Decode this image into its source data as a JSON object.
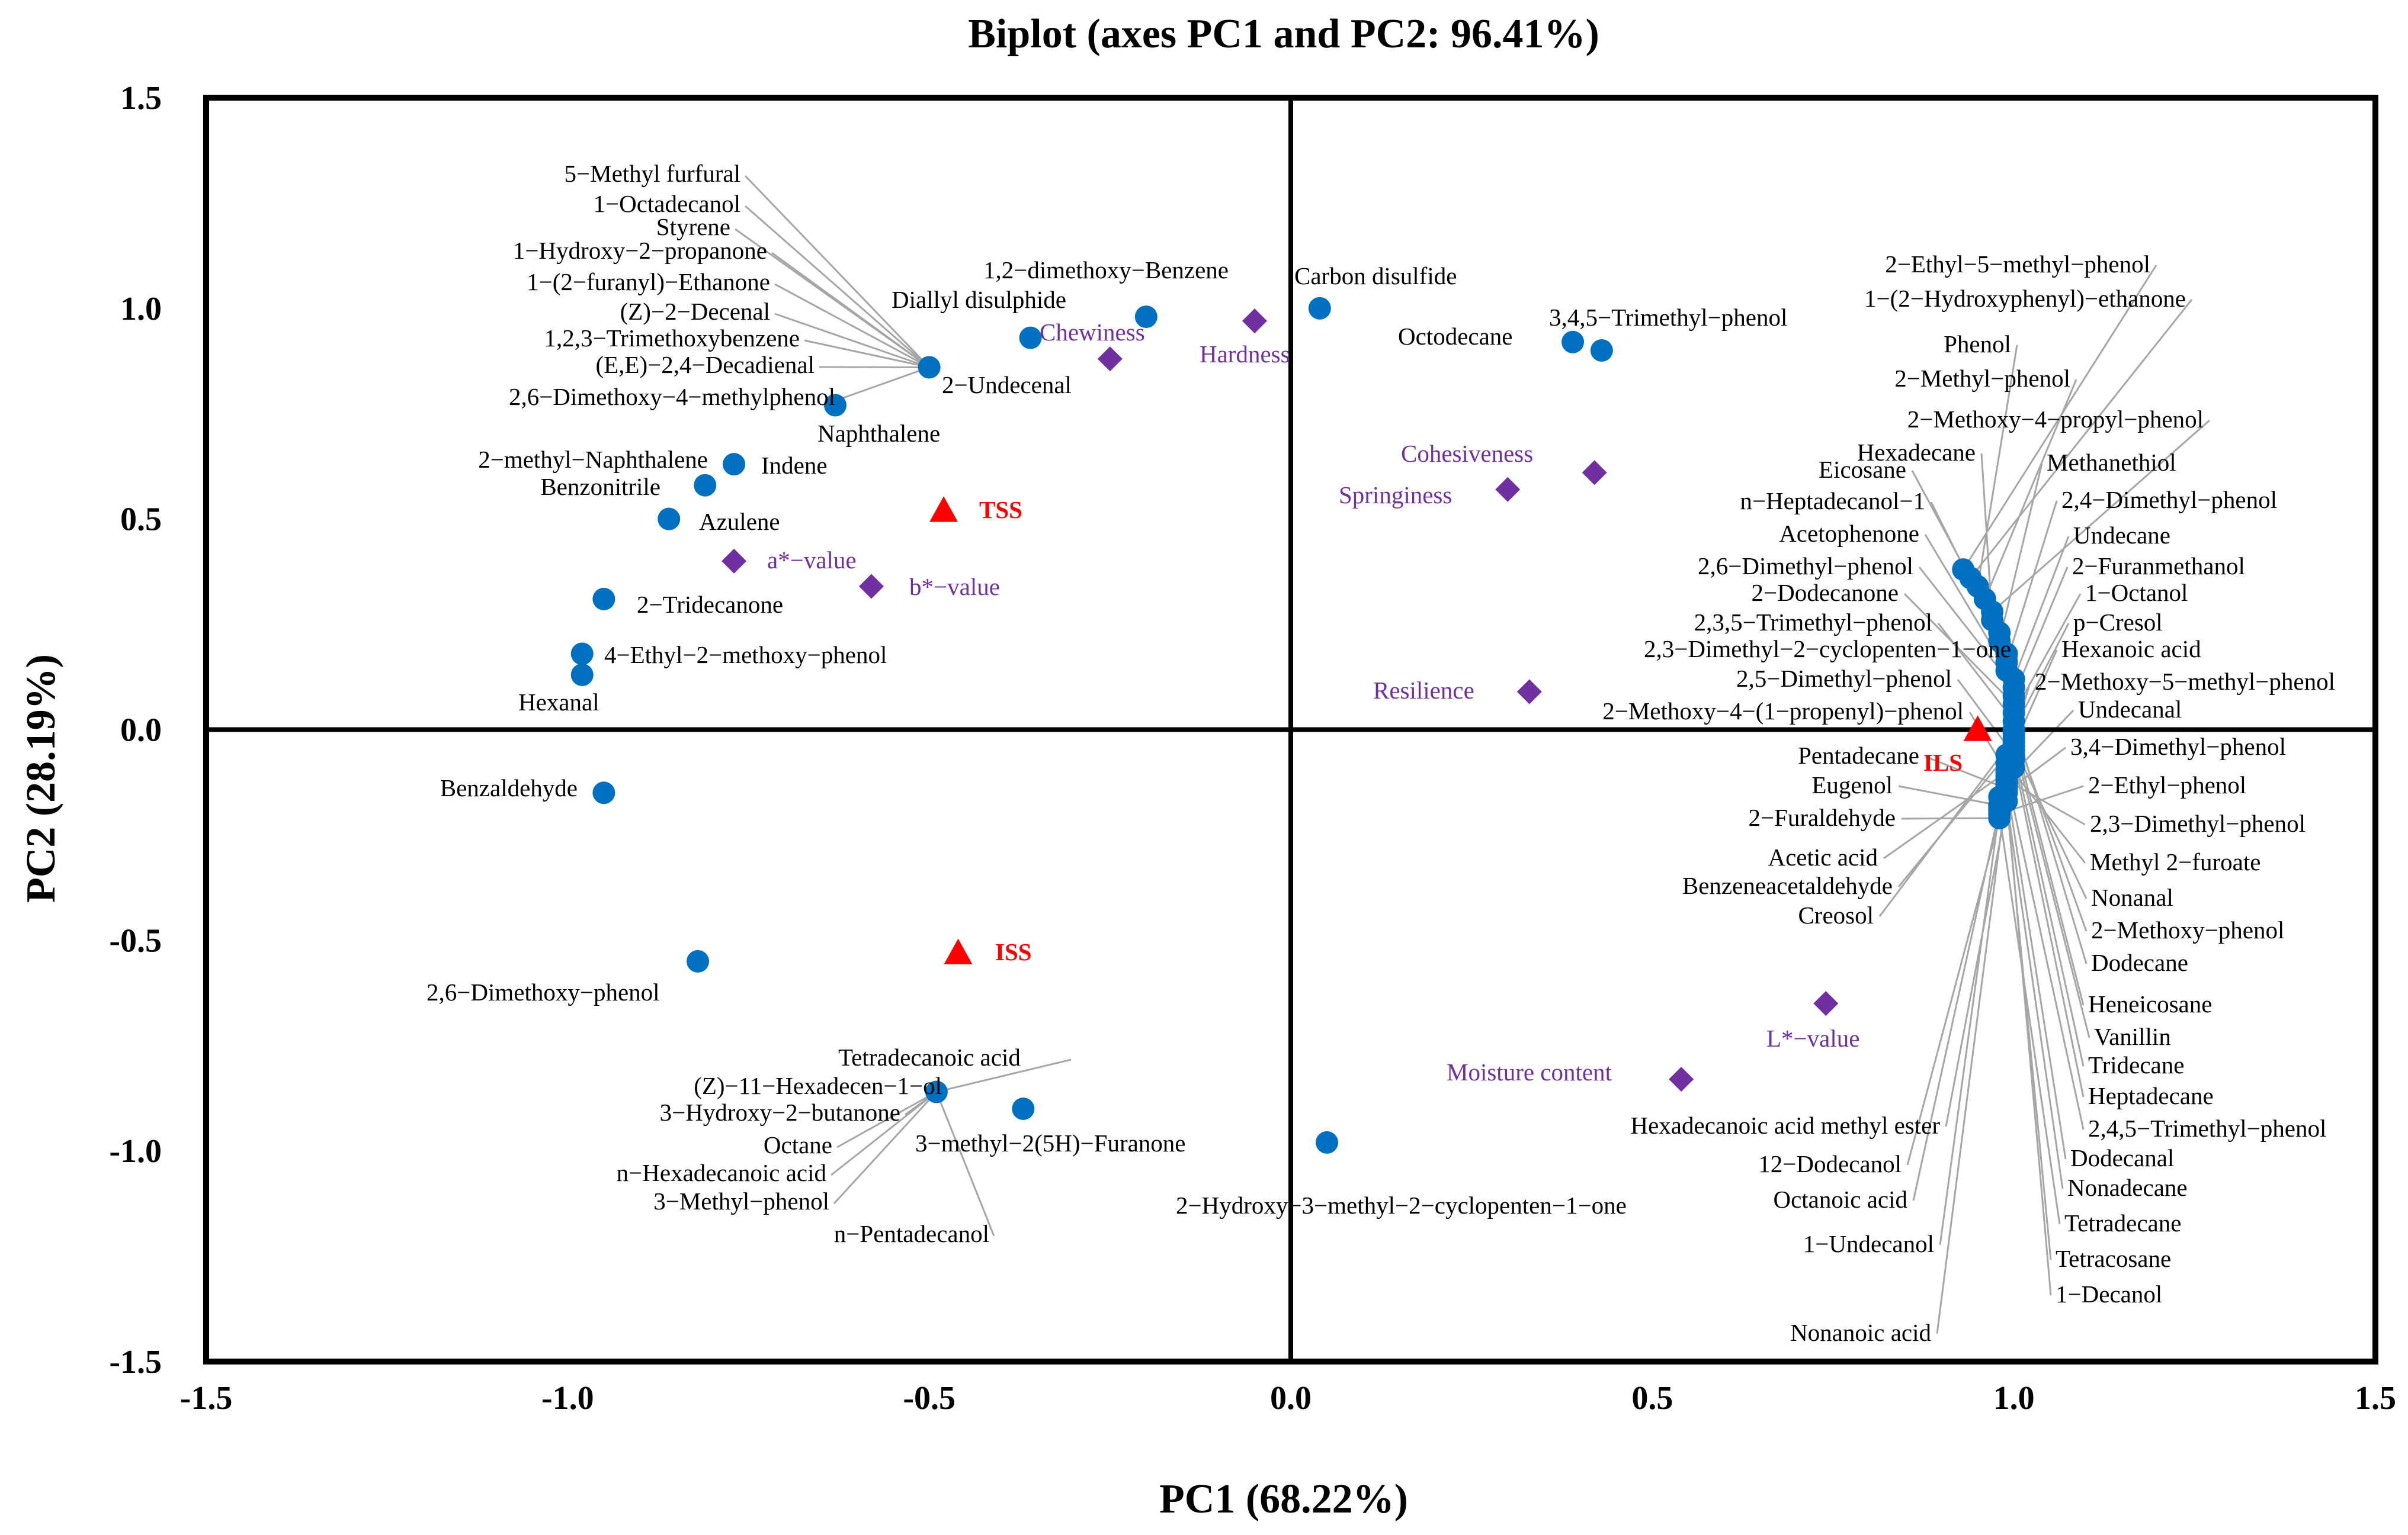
{
  "chart_data": {
    "type": "scatter",
    "title": "Biplot (axes PC1 and PC2: 96.41%)",
    "xlabel": "PC1 (68.22%)",
    "ylabel": "PC2 (28.19%)",
    "xlim": [
      -1.5,
      1.5
    ],
    "ylim": [
      -1.5,
      1.5
    ],
    "x_ticks": [
      "-1.5",
      "-1.0",
      "-0.5",
      "0.0",
      "0.5",
      "1.0",
      "1.5"
    ],
    "y_ticks": [
      "1.5",
      "1.0",
      "0.5",
      "0.0",
      "-0.5",
      "-1.0",
      "-1.5"
    ],
    "colors": {
      "volatile": "#0070c0",
      "texture": "#7030a0",
      "sample": "#ff0000",
      "leader": "#a6a6a6"
    },
    "series": [
      {
        "name": "Volatile compounds",
        "marker": "circle",
        "points": [
          {
            "x": -0.5,
            "y": 0.86,
            "label": "5−Methyl furfural"
          },
          {
            "x": -0.5,
            "y": 0.86,
            "label": "1−Octadecanol"
          },
          {
            "x": -0.5,
            "y": 0.86,
            "label": "Styrene"
          },
          {
            "x": -0.5,
            "y": 0.86,
            "label": "1−Hydroxy−2−propanone"
          },
          {
            "x": -0.5,
            "y": 0.86,
            "label": "1−(2−furanyl)−Ethanone"
          },
          {
            "x": -0.5,
            "y": 0.86,
            "label": "(Z)−2−Decenal"
          },
          {
            "x": -0.5,
            "y": 0.86,
            "label": "1,2,3−Trimethoxybenzene"
          },
          {
            "x": -0.5,
            "y": 0.86,
            "label": "(E,E)−2,4−Decadienal"
          },
          {
            "x": -0.5,
            "y": 0.86,
            "label": "2,6−Dimethoxy−4−methylphenol"
          },
          {
            "x": -0.5,
            "y": 0.86,
            "label": "2−Undecenal"
          },
          {
            "x": -0.36,
            "y": 0.93,
            "label": "Diallyl disulphide"
          },
          {
            "x": -0.2,
            "y": 0.98,
            "label": "1,2−dimethoxy−Benzene"
          },
          {
            "x": 0.04,
            "y": 1.0,
            "label": "Carbon disulfide"
          },
          {
            "x": 0.39,
            "y": 0.92,
            "label": "Octodecane"
          },
          {
            "x": 0.43,
            "y": 0.9,
            "label": "3,4,5−Trimethyl−phenol"
          },
          {
            "x": -0.63,
            "y": 0.77,
            "label": "Naphthalene"
          },
          {
            "x": -0.77,
            "y": 0.63,
            "label": "Indene"
          },
          {
            "x": -0.81,
            "y": 0.58,
            "label": "2−methyl−Naphthalene"
          },
          {
            "x": -0.81,
            "y": 0.58,
            "label": "Benzonitrile"
          },
          {
            "x": -0.86,
            "y": 0.5,
            "label": "Azulene"
          },
          {
            "x": -0.95,
            "y": 0.31,
            "label": "2−Tridecanone"
          },
          {
            "x": -0.98,
            "y": 0.18,
            "label": "4−Ethyl−2−methoxy−phenol"
          },
          {
            "x": -0.98,
            "y": 0.13,
            "label": "Hexanal"
          },
          {
            "x": -0.95,
            "y": -0.15,
            "label": "Benzaldehyde"
          },
          {
            "x": -0.82,
            "y": -0.55,
            "label": "2,6−Dimethoxy−phenol"
          },
          {
            "x": -0.49,
            "y": -0.86,
            "label": "Tetradecanoic acid"
          },
          {
            "x": -0.49,
            "y": -0.86,
            "label": "(Z)−11−Hexadecen−1−ol"
          },
          {
            "x": -0.49,
            "y": -0.86,
            "label": "3−Hydroxy−2−butanone"
          },
          {
            "x": -0.49,
            "y": -0.86,
            "label": "Octane"
          },
          {
            "x": -0.49,
            "y": -0.86,
            "label": "n−Hexadecanoic acid"
          },
          {
            "x": -0.49,
            "y": -0.86,
            "label": "3−Methyl−phenol"
          },
          {
            "x": -0.49,
            "y": -0.86,
            "label": "n−Pentadecanol"
          },
          {
            "x": -0.37,
            "y": -0.9,
            "label": "3−methyl−2(5H)−Furanone"
          },
          {
            "x": 0.05,
            "y": -0.98,
            "label": "2−Hydroxy−3−methyl−2−cyclopenten−1−one"
          },
          {
            "x": 0.93,
            "y": 0.38,
            "label": "2−Ethyl−5−methyl−phenol"
          },
          {
            "x": 0.94,
            "y": 0.36,
            "label": "1−(2−Hydroxyphenyl)−ethanone"
          },
          {
            "x": 0.95,
            "y": 0.34,
            "label": "Phenol"
          },
          {
            "x": 0.96,
            "y": 0.31,
            "label": "2−Methyl−phenol"
          },
          {
            "x": 0.97,
            "y": 0.28,
            "label": "2−Methoxy−4−propyl−phenol"
          },
          {
            "x": 0.97,
            "y": 0.26,
            "label": "Hexadecane"
          },
          {
            "x": 0.98,
            "y": 0.23,
            "label": "Eicosane"
          },
          {
            "x": 0.98,
            "y": 0.21,
            "label": "Methanethiol"
          },
          {
            "x": 0.99,
            "y": 0.18,
            "label": "n−Heptadecanol−1"
          },
          {
            "x": 0.99,
            "y": 0.16,
            "label": "2,4−Dimethyl−phenol"
          },
          {
            "x": 0.99,
            "y": 0.14,
            "label": "Acetophenone"
          },
          {
            "x": 1.0,
            "y": 0.12,
            "label": "Undecane"
          },
          {
            "x": 1.0,
            "y": 0.1,
            "label": "2,6−Dimethyl−phenol"
          },
          {
            "x": 1.0,
            "y": 0.08,
            "label": "2−Furanmethanol"
          },
          {
            "x": 1.0,
            "y": 0.06,
            "label": "2−Dodecanone"
          },
          {
            "x": 1.0,
            "y": 0.04,
            "label": "1−Octanol"
          },
          {
            "x": 1.0,
            "y": 0.02,
            "label": "2,3,5−Trimethyl−phenol"
          },
          {
            "x": 1.0,
            "y": 0.0,
            "label": "p−Cresol"
          },
          {
            "x": 1.0,
            "y": -0.02,
            "label": "2,3−Dimethyl−2−cyclopenten−1−one"
          },
          {
            "x": 1.0,
            "y": -0.04,
            "label": "Hexanoic acid"
          },
          {
            "x": 1.0,
            "y": -0.06,
            "label": "2,5−Dimethyl−phenol"
          },
          {
            "x": 0.99,
            "y": -0.08,
            "label": "2−Methoxy−5−methyl−phenol"
          },
          {
            "x": 0.99,
            "y": -0.1,
            "label": "2−Methoxy−4−(1−propenyl)−phenol"
          },
          {
            "x": 0.99,
            "y": -0.12,
            "label": "Undecanal"
          },
          {
            "x": 0.99,
            "y": -0.14,
            "label": "Pentadecane"
          },
          {
            "x": 0.98,
            "y": -0.16,
            "label": "3,4−Dimethyl−phenol"
          },
          {
            "x": 0.98,
            "y": -0.18,
            "label": "Eugenol"
          },
          {
            "x": 0.98,
            "y": -0.2,
            "label": "2−Ethyl−phenol"
          },
          {
            "x": 0.98,
            "y": -0.21,
            "label": "2−Furaldehyde"
          },
          {
            "x": 0.99,
            "y": -0.12,
            "label": "2,3−Dimethyl−phenol"
          },
          {
            "x": 0.99,
            "y": -0.1,
            "label": "Acetic acid"
          },
          {
            "x": 0.99,
            "y": -0.08,
            "label": "Methyl 2−furoate"
          },
          {
            "x": 0.99,
            "y": -0.06,
            "label": "Benzeneacetaldehyde"
          },
          {
            "x": 1.0,
            "y": -0.04,
            "label": "Nonanal"
          },
          {
            "x": 1.0,
            "y": -0.02,
            "label": "Creosol"
          },
          {
            "x": 1.0,
            "y": 0.0,
            "label": "2−Methoxy−phenol"
          },
          {
            "x": 1.0,
            "y": 0.02,
            "label": "Dodecane"
          },
          {
            "x": 1.0,
            "y": -0.01,
            "label": "Heneicosane"
          },
          {
            "x": 1.0,
            "y": -0.03,
            "label": "Vanillin"
          },
          {
            "x": 1.0,
            "y": -0.05,
            "label": "Tridecane"
          },
          {
            "x": 1.0,
            "y": -0.07,
            "label": "Heptadecane"
          },
          {
            "x": 1.0,
            "y": -0.09,
            "label": "Hexadecanoic acid methyl ester"
          },
          {
            "x": 0.99,
            "y": -0.11,
            "label": "2,4,5−Trimethyl−phenol"
          },
          {
            "x": 0.99,
            "y": -0.13,
            "label": "Dodecanal"
          },
          {
            "x": 0.99,
            "y": -0.15,
            "label": "12−Dodecanol"
          },
          {
            "x": 0.99,
            "y": -0.17,
            "label": "Nonadecane"
          },
          {
            "x": 0.98,
            "y": -0.19,
            "label": "Octanoic acid"
          },
          {
            "x": 0.98,
            "y": -0.2,
            "label": "Tetradecane"
          },
          {
            "x": 0.98,
            "y": -0.19,
            "label": "1−Undecanol"
          },
          {
            "x": 0.99,
            "y": -0.17,
            "label": "Tetracosane"
          },
          {
            "x": 0.99,
            "y": -0.15,
            "label": "1−Decanol"
          },
          {
            "x": 0.99,
            "y": -0.14,
            "label": "Nonanoic acid"
          }
        ]
      },
      {
        "name": "Texture and colour attributes",
        "marker": "diamond",
        "points": [
          {
            "x": -0.25,
            "y": 0.88,
            "label": "Chewiness"
          },
          {
            "x": -0.05,
            "y": 0.97,
            "label": "Hardness"
          },
          {
            "x": 0.42,
            "y": 0.61,
            "label": "Cohesiveness"
          },
          {
            "x": 0.3,
            "y": 0.57,
            "label": "Springiness"
          },
          {
            "x": -0.77,
            "y": 0.4,
            "label": "a*−value"
          },
          {
            "x": -0.58,
            "y": 0.34,
            "label": "b*−value"
          },
          {
            "x": 0.33,
            "y": 0.09,
            "label": "Resilience"
          },
          {
            "x": 0.74,
            "y": -0.65,
            "label": "L*−value"
          },
          {
            "x": 0.54,
            "y": -0.83,
            "label": "Moisture content"
          }
        ]
      },
      {
        "name": "Samples",
        "marker": "triangle",
        "points": [
          {
            "x": -0.48,
            "y": 0.52,
            "label": "TSS"
          },
          {
            "x": -0.46,
            "y": -0.53,
            "label": "ISS"
          },
          {
            "x": 0.95,
            "y": 0.0,
            "label": "ILS"
          }
        ]
      }
    ]
  }
}
